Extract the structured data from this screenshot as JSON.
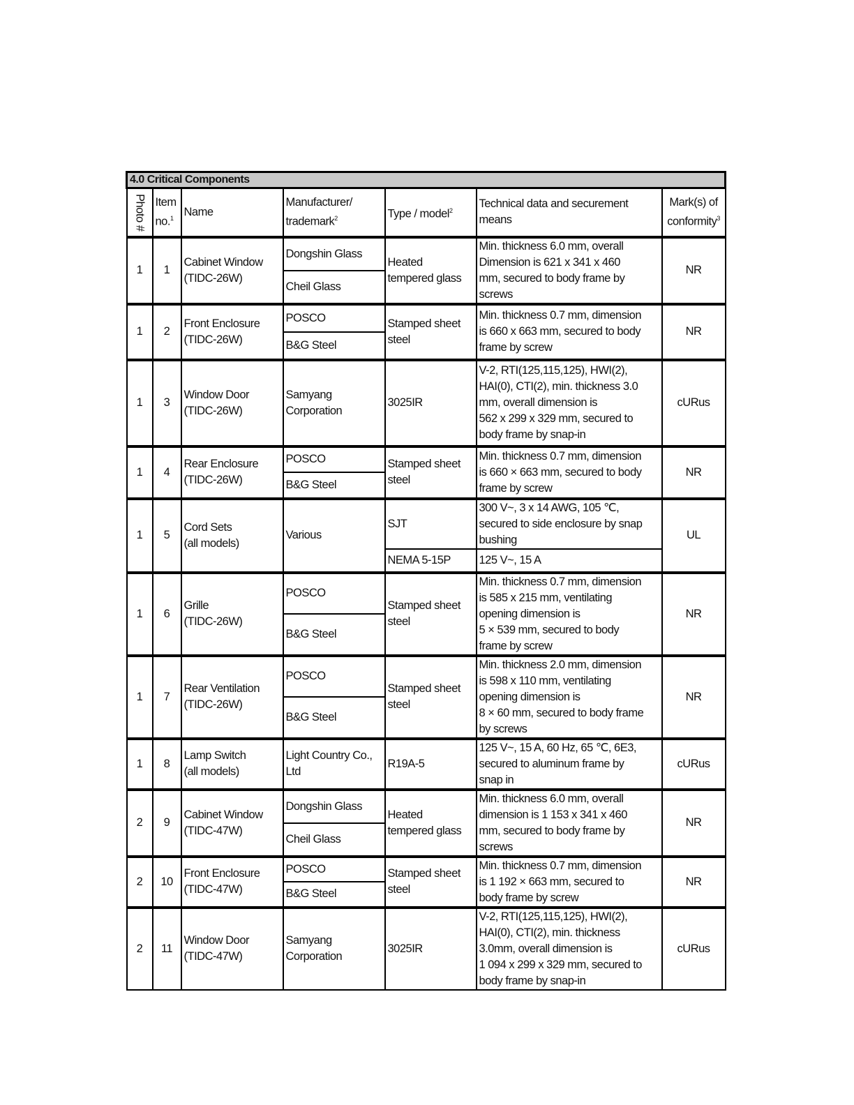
{
  "section_title": "4.0 Critical Components",
  "headers": {
    "photo": "Photo #",
    "item": "Item no.",
    "item_sup": "1",
    "name": "Name",
    "manufacturer": "Manufacturer/\ntrademark",
    "manufacturer_sup": "2",
    "type": "Type / model",
    "type_sup": "2",
    "tech": "Technical data and securement means",
    "mark": "Mark(s) of conformity",
    "mark_sup": "3"
  },
  "rows": [
    {
      "photo": "1",
      "item": "1",
      "name": "Cabinet Window\n(TIDC-26W)",
      "manufacturers": [
        "Dongshin Glass",
        "Cheil Glass"
      ],
      "type": "Heated\ntempered glass",
      "tech": "Min. thickness 6.0 mm, overall\nDimension is  621 x 341 x 460\nmm, secured to body frame by\nscrews",
      "mark": "NR"
    },
    {
      "photo": "1",
      "item": "2",
      "name": "Front Enclosure\n(TIDC-26W)",
      "manufacturers": [
        "POSCO",
        "B&G Steel"
      ],
      "type": "Stamped sheet\nsteel",
      "tech": "Min. thickness 0.7 mm, dimension\nis 660 x 663 mm, secured to body\nframe by screw",
      "mark": "NR"
    },
    {
      "photo": "1",
      "item": "3",
      "name": "Window Door\n(TIDC-26W)",
      "manufacturers": [
        "Samyang\nCorporation"
      ],
      "type": "3025IR",
      "tech": "V-2, RTI(125,115,125), HWI(2),\nHAI(0), CTI(2), min. thickness 3.0\nmm, overall dimension is\n562 x 299 x 329 mm, secured to\nbody frame by snap-in",
      "mark": "cURus"
    },
    {
      "photo": "1",
      "item": "4",
      "name": "Rear Enclosure\n(TIDC-26W)",
      "manufacturers": [
        "POSCO",
        "B&G Steel"
      ],
      "type": "Stamped sheet\nsteel",
      "tech": "Min. thickness 0.7 mm, dimension\nis 660 × 663 mm, secured to body\nframe by screw",
      "mark": "NR"
    },
    {
      "photo": "1",
      "item": "5",
      "name": "Cord Sets\n(all models)",
      "manufacturer": "Various",
      "subtypes": [
        {
          "type": "SJT",
          "tech": "300 V~, 3 x 14 AWG, 105 ℃,\nsecured to side enclosure by snap\nbushing"
        },
        {
          "type": "NEMA 5-15P",
          "tech": "125 V~, 15 A"
        }
      ],
      "mark": "UL"
    },
    {
      "photo": "1",
      "item": "6",
      "name": "Grille\n(TIDC-26W)",
      "manufacturers": [
        "POSCO",
        "B&G Steel"
      ],
      "type": "Stamped sheet\nsteel",
      "tech": "Min. thickness 0.7 mm, dimension\nis 585 x 215 mm, ventilating\nopening dimension is\n5 × 539 mm, secured to body\nframe by screw",
      "mark": "NR"
    },
    {
      "photo": "1",
      "item": "7",
      "name": "Rear Ventilation\n(TIDC-26W)",
      "manufacturers": [
        "POSCO",
        "B&G Steel"
      ],
      "type": "Stamped sheet\nsteel",
      "tech": "Min. thickness 2.0 mm, dimension\nis 598 x 110 mm, ventilating\nopening dimension is\n8 × 60 mm, secured to body frame\nby screws",
      "mark": "NR"
    },
    {
      "photo": "1",
      "item": "8",
      "name": "Lamp Switch\n(all models)",
      "manufacturers": [
        "Light Country Co.,\nLtd"
      ],
      "type": "R19A-5",
      "tech": "125 V~, 15 A, 60 Hz, 65 ℃, 6E3,\nsecured to aluminum frame by\nsnap in",
      "mark": "cURus"
    },
    {
      "photo": "2",
      "item": "9",
      "name": "Cabinet Window\n(TIDC-47W)",
      "manufacturers": [
        "Dongshin Glass",
        "Cheil Glass"
      ],
      "type": "Heated\ntempered glass",
      "tech": "Min. thickness 6.0 mm, overall\ndimension is 1 153 x 341 x 460\nmm, secured to body frame by\nscrews",
      "mark": "NR"
    },
    {
      "photo": "2",
      "item": "10",
      "name": "Front Enclosure\n(TIDC-47W)",
      "manufacturers": [
        "POSCO",
        "B&G Steel"
      ],
      "type": "Stamped sheet\nsteel",
      "tech": "Min. thickness 0.7 mm, dimension\nis 1 192 × 663 mm, secured to\nbody frame by screw",
      "mark": "NR"
    },
    {
      "photo": "2",
      "item": "11",
      "name": "Window Door\n(TIDC-47W)",
      "manufacturers": [
        "Samyang\nCorporation"
      ],
      "type": "3025IR",
      "tech": "V-2, RTI(125,115,125), HWI(2),\nHAI(0), CTI(2), min. thickness\n3.0mm, overall dimension is\n1 094 x 299 x 329 mm, secured to\nbody frame by snap-in",
      "mark": "cURus"
    }
  ]
}
